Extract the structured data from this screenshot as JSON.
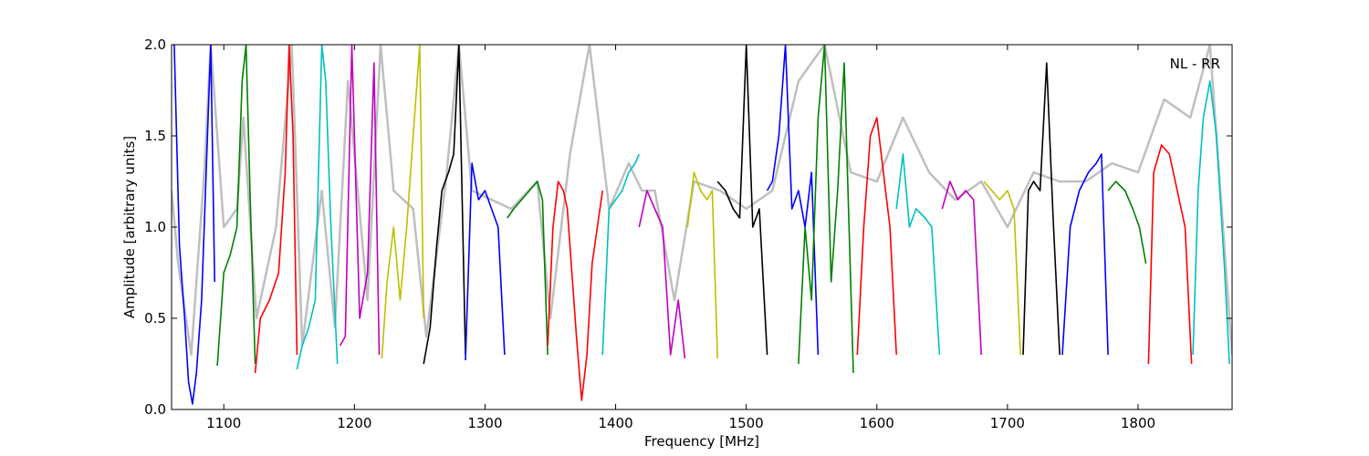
{
  "chart_data": {
    "type": "line",
    "annotation": "NL - RR",
    "xlabel": "Frequency [MHz]",
    "ylabel": "Amplitude [arbitrary units]",
    "xlim": [
      1060,
      1872
    ],
    "ylim": [
      0.0,
      2.0
    ],
    "x_ticks": [
      1100,
      1200,
      1300,
      1400,
      1500,
      1600,
      1700,
      1800
    ],
    "x_tick_labels": [
      "1100",
      "1200",
      "1300",
      "1400",
      "1500",
      "1600",
      "1700",
      "1800"
    ],
    "y_ticks": [
      0.0,
      0.5,
      1.0,
      1.5,
      2.0
    ],
    "y_tick_labels": [
      "0.0",
      "0.5",
      "1.0",
      "1.5",
      "2.0"
    ],
    "grid": false,
    "background_series": {
      "color": "#bfbfbf",
      "x": [
        1060,
        1065,
        1075,
        1085,
        1090,
        1100,
        1110,
        1115,
        1125,
        1140,
        1152,
        1160,
        1175,
        1185,
        1195,
        1210,
        1220,
        1230,
        1245,
        1255,
        1270,
        1280,
        1290,
        1305,
        1320,
        1340,
        1350,
        1365,
        1380,
        1395,
        1410,
        1420,
        1430,
        1445,
        1460,
        1480,
        1500,
        1520,
        1540,
        1560,
        1580,
        1600,
        1620,
        1640,
        1660,
        1680,
        1700,
        1720,
        1740,
        1760,
        1780,
        1800,
        1820,
        1840,
        1855,
        1872
      ],
      "y": [
        1.2,
        0.8,
        0.3,
        1.3,
        2.0,
        1.0,
        1.1,
        1.6,
        0.5,
        1.0,
        2.0,
        0.35,
        1.2,
        0.45,
        1.8,
        0.6,
        2.0,
        1.2,
        1.1,
        0.4,
        1.25,
        2.0,
        1.2,
        1.15,
        1.1,
        1.25,
        0.5,
        1.4,
        2.0,
        1.1,
        1.35,
        1.2,
        1.2,
        0.6,
        1.25,
        1.2,
        1.1,
        1.2,
        1.8,
        2.0,
        1.3,
        1.25,
        1.6,
        1.3,
        1.15,
        1.25,
        1.0,
        1.3,
        1.25,
        1.25,
        1.35,
        1.3,
        1.7,
        1.6,
        2.0,
        0.3
      ]
    },
    "series": [
      {
        "color": "#0000ff",
        "x": [
          1062,
          1066,
          1070,
          1073,
          1076,
          1079,
          1083,
          1087,
          1090,
          1093
        ],
        "y": [
          2.0,
          0.9,
          0.5,
          0.15,
          0.03,
          0.2,
          0.6,
          1.4,
          2.0,
          0.7
        ]
      },
      {
        "color": "#008000",
        "x": [
          1095,
          1100,
          1105,
          1110,
          1114,
          1117,
          1120,
          1124
        ],
        "y": [
          0.24,
          0.75,
          0.85,
          1.0,
          1.8,
          2.0,
          1.2,
          0.25
        ]
      },
      {
        "color": "#ff0000",
        "x": [
          1124,
          1128,
          1135,
          1142,
          1147,
          1150,
          1153,
          1156
        ],
        "y": [
          0.2,
          0.5,
          0.6,
          0.75,
          1.3,
          2.0,
          1.5,
          0.3
        ]
      },
      {
        "color": "#00bfbf",
        "x": [
          1156,
          1160,
          1165,
          1170,
          1175,
          1178,
          1182,
          1187
        ],
        "y": [
          0.22,
          0.35,
          0.45,
          0.6,
          2.0,
          1.8,
          1.0,
          0.25
        ]
      },
      {
        "color": "#bf00bf",
        "x": [
          1189,
          1193,
          1198,
          1204,
          1210,
          1215,
          1219
        ],
        "y": [
          0.35,
          0.4,
          2.0,
          0.5,
          0.75,
          1.9,
          0.3
        ]
      },
      {
        "color": "#bfbf00",
        "x": [
          1221,
          1225,
          1230,
          1235,
          1240,
          1245,
          1250,
          1253
        ],
        "y": [
          0.28,
          0.7,
          1.0,
          0.6,
          1.0,
          1.5,
          2.0,
          0.5
        ]
      },
      {
        "color": "#000000",
        "x": [
          1253,
          1258,
          1263,
          1267,
          1272,
          1276,
          1280,
          1285
        ],
        "y": [
          0.25,
          0.45,
          0.9,
          1.2,
          1.3,
          1.4,
          2.0,
          0.3
        ]
      },
      {
        "color": "#0000ff",
        "x": [
          1285,
          1290,
          1295,
          1300,
          1305,
          1310,
          1315
        ],
        "y": [
          0.27,
          1.35,
          1.15,
          1.2,
          1.1,
          1.0,
          0.3
        ]
      },
      {
        "color": "#008000",
        "x": [
          1317,
          1322,
          1328,
          1334,
          1340,
          1344,
          1348
        ],
        "y": [
          1.05,
          1.1,
          1.15,
          1.2,
          1.25,
          1.15,
          0.3
        ]
      },
      {
        "color": "#ff0000",
        "x": [
          1348,
          1352,
          1356,
          1360,
          1363,
          1366,
          1370,
          1374,
          1378,
          1382,
          1386,
          1390
        ],
        "y": [
          0.35,
          1.0,
          1.25,
          1.2,
          1.1,
          0.8,
          0.4,
          0.05,
          0.3,
          0.8,
          1.0,
          1.2
        ]
      },
      {
        "color": "#00bfbf",
        "x": [
          1390,
          1395,
          1400,
          1405,
          1410,
          1415,
          1418
        ],
        "y": [
          0.3,
          1.1,
          1.15,
          1.2,
          1.3,
          1.35,
          1.4
        ]
      },
      {
        "color": "#bf00bf",
        "x": [
          1418,
          1424,
          1430,
          1436,
          1442,
          1448,
          1453
        ],
        "y": [
          1.0,
          1.2,
          1.1,
          1.0,
          0.3,
          0.6,
          0.28
        ]
      },
      {
        "color": "#bfbf00",
        "x": [
          1455,
          1460,
          1465,
          1470,
          1474,
          1478
        ],
        "y": [
          1.0,
          1.3,
          1.2,
          1.15,
          1.2,
          0.28
        ]
      },
      {
        "color": "#000000",
        "x": [
          1478,
          1484,
          1490,
          1495,
          1500,
          1505,
          1510,
          1516
        ],
        "y": [
          1.25,
          1.2,
          1.1,
          1.05,
          2.0,
          1.0,
          1.1,
          0.3
        ]
      },
      {
        "color": "#0000ff",
        "x": [
          1516,
          1520,
          1525,
          1530,
          1535,
          1540,
          1545,
          1550,
          1555
        ],
        "y": [
          1.2,
          1.25,
          1.5,
          2.0,
          1.1,
          1.2,
          1.0,
          1.3,
          0.3
        ]
      },
      {
        "color": "#008000",
        "x": [
          1540,
          1545,
          1550,
          1555,
          1560,
          1565,
          1570,
          1575,
          1582
        ],
        "y": [
          0.25,
          1.0,
          0.6,
          1.6,
          2.0,
          0.7,
          1.2,
          1.9,
          0.2
        ]
      },
      {
        "color": "#ff0000",
        "x": [
          1585,
          1590,
          1595,
          1600,
          1605,
          1610,
          1615
        ],
        "y": [
          0.3,
          1.0,
          1.5,
          1.6,
          1.3,
          1.0,
          0.3
        ]
      },
      {
        "color": "#00bfbf",
        "x": [
          1615,
          1620,
          1625,
          1630,
          1637,
          1642,
          1648
        ],
        "y": [
          1.1,
          1.4,
          1.0,
          1.1,
          1.05,
          1.0,
          0.3
        ]
      },
      {
        "color": "#bf00bf",
        "x": [
          1650,
          1656,
          1662,
          1668,
          1674,
          1680
        ],
        "y": [
          1.1,
          1.25,
          1.15,
          1.2,
          1.15,
          0.3
        ]
      },
      {
        "color": "#bfbf00",
        "x": [
          1682,
          1688,
          1694,
          1700,
          1705,
          1710
        ],
        "y": [
          1.25,
          1.2,
          1.15,
          1.2,
          1.1,
          0.3
        ]
      },
      {
        "color": "#000000",
        "x": [
          1712,
          1716,
          1720,
          1725,
          1730,
          1735,
          1740
        ],
        "y": [
          0.3,
          1.2,
          1.25,
          1.2,
          1.9,
          1.05,
          0.3
        ]
      },
      {
        "color": "#0000ff",
        "x": [
          1742,
          1748,
          1755,
          1762,
          1768,
          1772,
          1777
        ],
        "y": [
          0.3,
          1.0,
          1.2,
          1.3,
          1.35,
          1.4,
          0.3
        ]
      },
      {
        "color": "#008000",
        "x": [
          1777,
          1783,
          1790,
          1796,
          1801,
          1806
        ],
        "y": [
          1.2,
          1.25,
          1.2,
          1.1,
          1.0,
          0.8
        ]
      },
      {
        "color": "#ff0000",
        "x": [
          1808,
          1812,
          1818,
          1824,
          1830,
          1836,
          1841
        ],
        "y": [
          0.25,
          1.3,
          1.45,
          1.4,
          1.2,
          1.0,
          0.25
        ]
      },
      {
        "color": "#00bfbf",
        "x": [
          1842,
          1846,
          1850,
          1855,
          1860,
          1866,
          1870
        ],
        "y": [
          0.3,
          1.2,
          1.6,
          1.8,
          1.5,
          0.8,
          0.25
        ]
      }
    ]
  }
}
